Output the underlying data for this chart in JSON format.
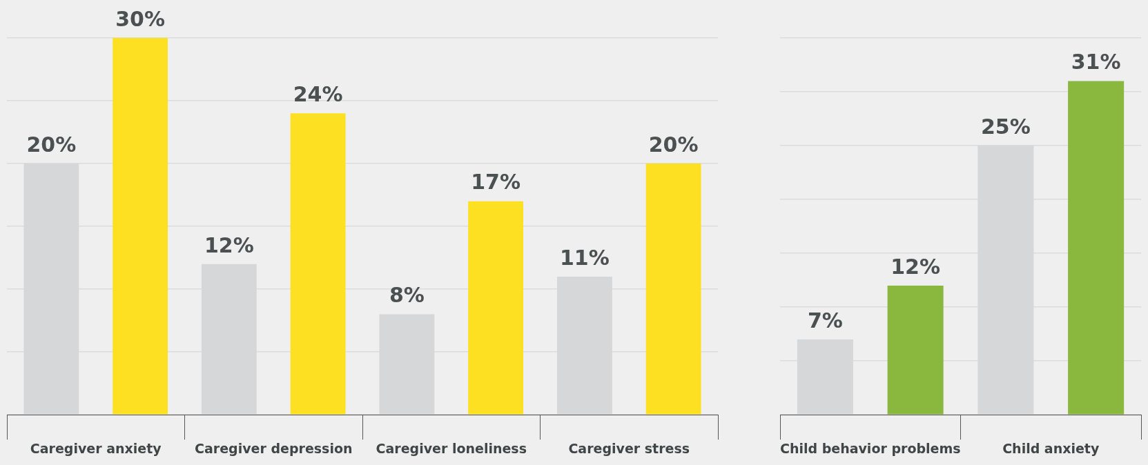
{
  "chart_data": [
    {
      "type": "bar",
      "categories": [
        "Caregiver anxiety",
        "Caregiver depression",
        "Caregiver loneliness",
        "Caregiver stress"
      ],
      "series": [
        {
          "color": "#d6d7d8",
          "values": [
            20,
            12,
            8,
            11
          ],
          "value_labels": [
            "20%",
            "12%",
            "8%",
            "11%"
          ]
        },
        {
          "color": "#fde021",
          "values": [
            30,
            24,
            17,
            20
          ],
          "value_labels": [
            "30%",
            "24%",
            "17%",
            "20%"
          ]
        }
      ],
      "tick_labels": "x",
      "grid": "y",
      "legend": false
    },
    {
      "type": "bar",
      "categories": [
        "Child behavior problems",
        "Child anxiety"
      ],
      "series": [
        {
          "color": "#d6d7d8",
          "values": [
            7,
            25
          ],
          "value_labels": [
            "7%",
            "25%"
          ]
        },
        {
          "color": "#8ab83f",
          "values": [
            12,
            31
          ],
          "value_labels": [
            "12%",
            "31%"
          ]
        }
      ],
      "tick_labels": "x",
      "grid": "y",
      "legend": false
    }
  ]
}
